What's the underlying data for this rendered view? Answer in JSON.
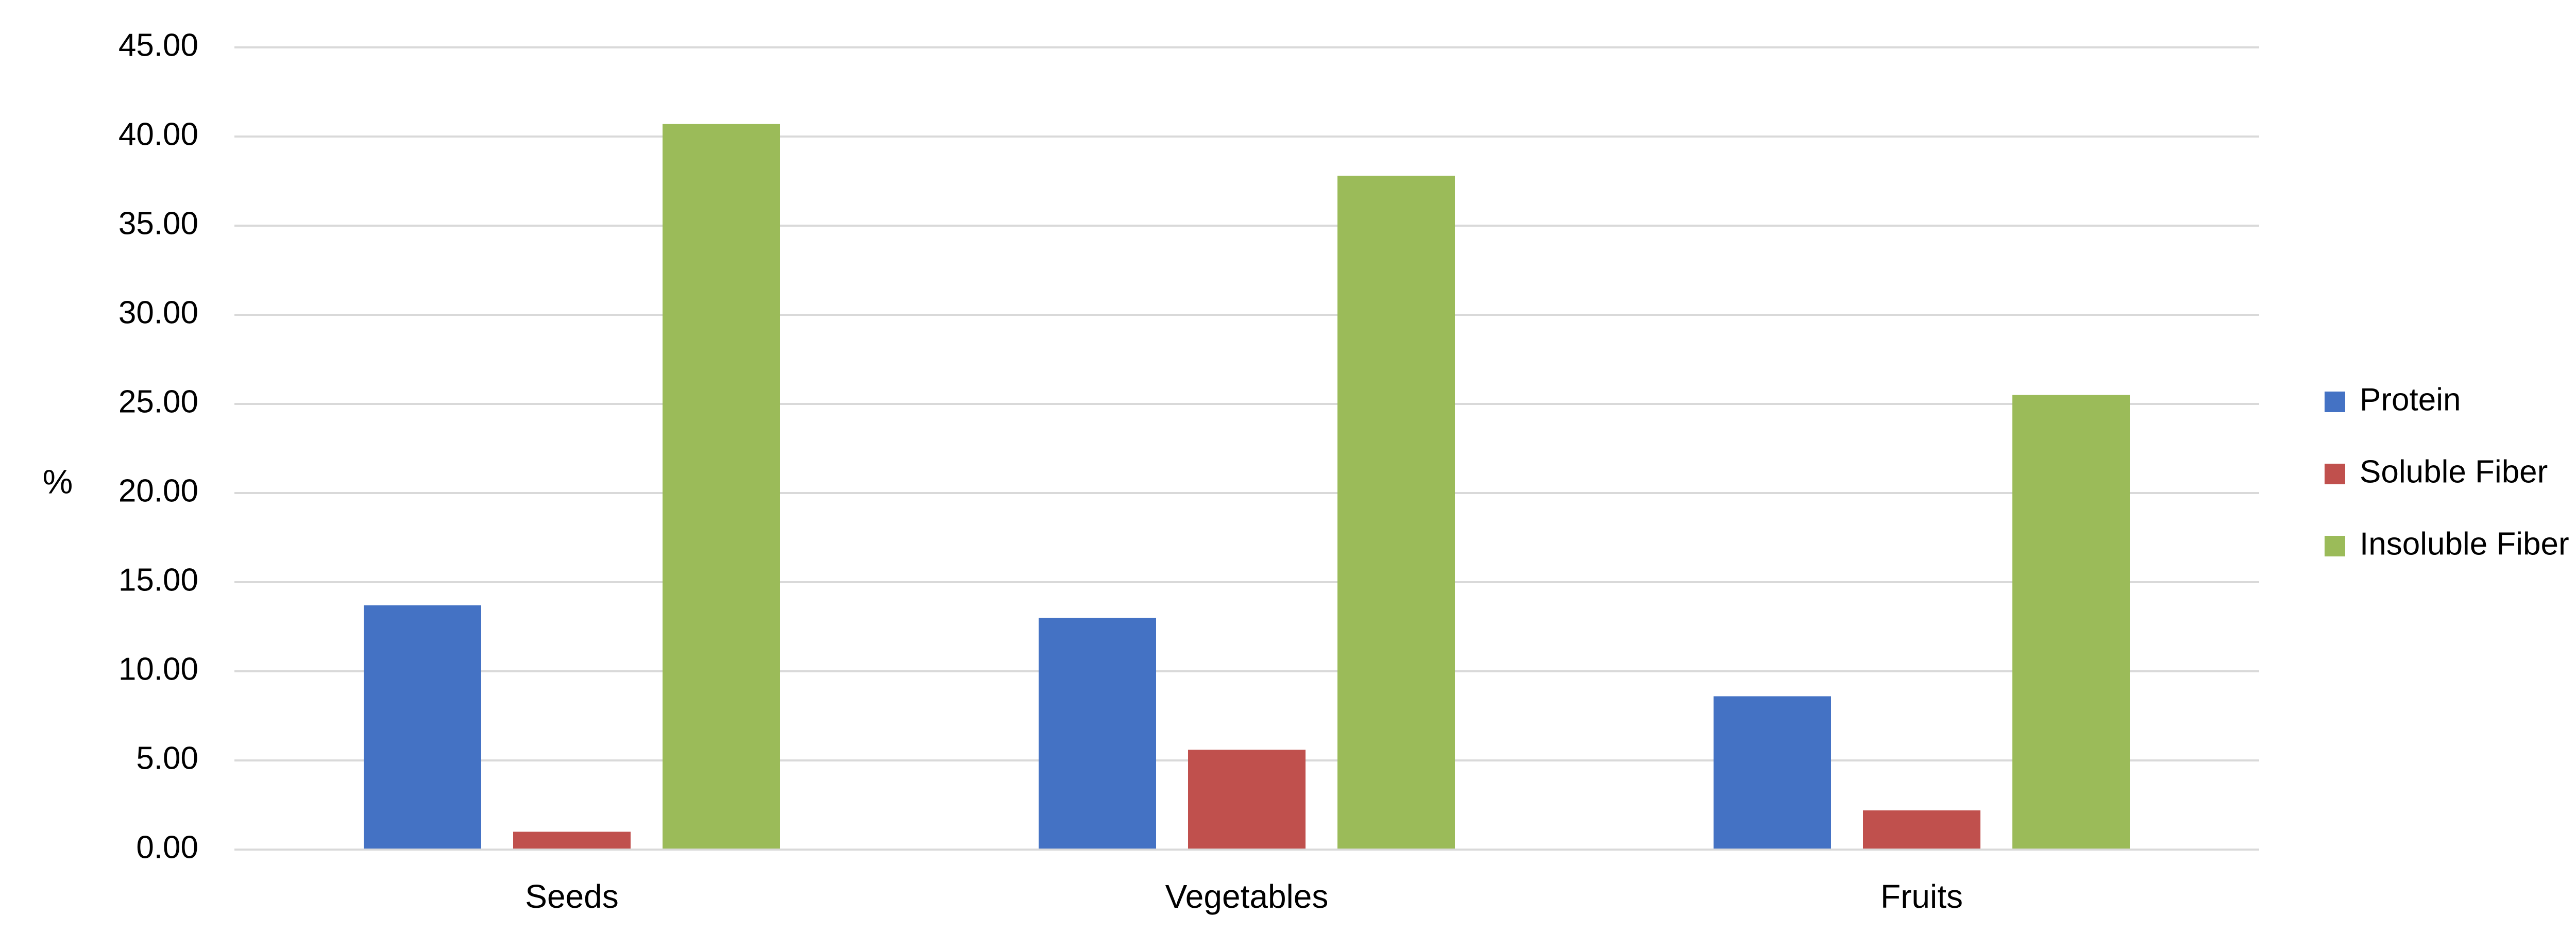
{
  "chart_data": {
    "type": "bar",
    "title": "",
    "xlabel": "",
    "ylabel": "%",
    "ylim": [
      0,
      45
    ],
    "yticks": [
      0,
      5,
      10,
      15,
      20,
      25,
      30,
      35,
      40,
      45
    ],
    "ytick_labels": [
      "0.00",
      "5.00",
      "10.00",
      "15.00",
      "20.00",
      "25.00",
      "30.00",
      "35.00",
      "40.00",
      "45.00"
    ],
    "grid": true,
    "legend_position": "right",
    "categories": [
      "Seeds",
      "Vegetables",
      "Fruits"
    ],
    "series": [
      {
        "name": "Protein",
        "color": "#4472C4",
        "values": [
          13.7,
          13.0,
          8.6
        ]
      },
      {
        "name": "Soluble Fiber",
        "color": "#C0504D",
        "values": [
          1.0,
          5.6,
          2.2
        ]
      },
      {
        "name": "Insoluble Fiber",
        "color": "#9BBB59",
        "values": [
          40.7,
          37.8,
          25.5
        ]
      }
    ]
  }
}
